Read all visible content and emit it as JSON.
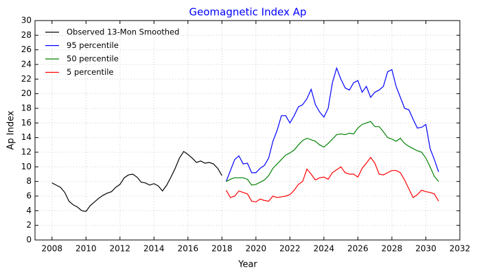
{
  "chart_data": {
    "type": "line",
    "title": "Geomagnetic Index Ap",
    "title_color": "#0000ff",
    "xlabel": "Year",
    "ylabel": "Ap Index",
    "x": [
      2008.0,
      2008.25,
      2008.5,
      2008.75,
      2009.0,
      2009.25,
      2009.5,
      2009.75,
      2010.0,
      2010.25,
      2010.5,
      2010.75,
      2011.0,
      2011.25,
      2011.5,
      2011.75,
      2012.0,
      2012.25,
      2012.5,
      2012.75,
      2013.0,
      2013.25,
      2013.5,
      2013.75,
      2014.0,
      2014.25,
      2014.5,
      2014.75,
      2015.0,
      2015.25,
      2015.5,
      2015.75,
      2016.0,
      2016.25,
      2016.5,
      2016.75,
      2017.0,
      2017.25,
      2017.5,
      2017.75,
      2018.0,
      2018.25,
      2018.5,
      2018.75,
      2019.0,
      2019.25,
      2019.5,
      2019.75,
      2020.0,
      2020.25,
      2020.5,
      2020.75,
      2021.0,
      2021.25,
      2021.5,
      2021.75,
      2022.0,
      2022.25,
      2022.5,
      2022.75,
      2023.0,
      2023.25,
      2023.5,
      2023.75,
      2024.0,
      2024.25,
      2024.5,
      2024.75,
      2025.0,
      2025.25,
      2025.5,
      2025.75,
      2026.0,
      2026.25,
      2026.5,
      2026.75,
      2027.0,
      2027.25,
      2027.5,
      2027.75,
      2028.0,
      2028.25,
      2028.5,
      2028.75,
      2029.0,
      2029.25,
      2029.5,
      2029.75,
      2030.0,
      2030.25,
      2030.5,
      2030.75
    ],
    "series": [
      {
        "name": "Observed 13-Mon Smoothed",
        "color": "#000000",
        "values": [
          7.8,
          7.5,
          7.2,
          6.5,
          5.3,
          4.8,
          4.5,
          4.0,
          3.9,
          4.7,
          5.2,
          5.7,
          6.1,
          6.4,
          6.6,
          7.2,
          7.6,
          8.5,
          8.9,
          9.0,
          8.6,
          7.9,
          7.8,
          7.5,
          7.7,
          7.4,
          6.7,
          7.5,
          8.6,
          9.8,
          11.2,
          12.1,
          11.7,
          11.2,
          10.6,
          10.8,
          10.5,
          10.6,
          10.4,
          9.8,
          8.8,
          null,
          null,
          null,
          null,
          null,
          null,
          null,
          null,
          null,
          null,
          null,
          null,
          null,
          null,
          null,
          null,
          null,
          null,
          null,
          null,
          null,
          null,
          null,
          null,
          null,
          null,
          null,
          null,
          null,
          null,
          null,
          null,
          null,
          null,
          null,
          null,
          null,
          null,
          null,
          null,
          null,
          null,
          null,
          null,
          null,
          null,
          null,
          null,
          null,
          null,
          null
        ]
      },
      {
        "name": "95 percentile",
        "color": "#0000ff",
        "values": [
          null,
          null,
          null,
          null,
          null,
          null,
          null,
          null,
          null,
          null,
          null,
          null,
          null,
          null,
          null,
          null,
          null,
          null,
          null,
          null,
          null,
          null,
          null,
          null,
          null,
          null,
          null,
          null,
          null,
          null,
          null,
          null,
          null,
          null,
          null,
          null,
          null,
          null,
          null,
          null,
          null,
          8.0,
          9.5,
          11.0,
          11.5,
          10.4,
          10.5,
          9.2,
          9.2,
          9.8,
          10.2,
          11.2,
          13.5,
          15.0,
          17.0,
          17.0,
          16.0,
          17.0,
          18.2,
          18.5,
          19.3,
          20.6,
          18.5,
          17.5,
          16.8,
          18.0,
          21.5,
          23.5,
          22.0,
          20.8,
          20.5,
          21.5,
          21.8,
          20.2,
          21.0,
          19.5,
          20.2,
          20.5,
          21.0,
          23.0,
          23.3,
          21.0,
          19.5,
          18.0,
          17.8,
          16.5,
          15.3,
          15.4,
          15.8,
          12.5,
          11.0,
          9.3
        ]
      },
      {
        "name": "50 percentile",
        "color": "#008000",
        "values": [
          null,
          null,
          null,
          null,
          null,
          null,
          null,
          null,
          null,
          null,
          null,
          null,
          null,
          null,
          null,
          null,
          null,
          null,
          null,
          null,
          null,
          null,
          null,
          null,
          null,
          null,
          null,
          null,
          null,
          null,
          null,
          null,
          null,
          null,
          null,
          null,
          null,
          null,
          null,
          null,
          null,
          8.0,
          8.3,
          8.5,
          8.5,
          8.5,
          8.3,
          7.5,
          7.6,
          7.9,
          8.2,
          8.8,
          9.8,
          10.4,
          11.0,
          11.6,
          11.9,
          12.3,
          13.0,
          13.6,
          13.9,
          13.7,
          13.5,
          13.0,
          12.7,
          13.2,
          13.8,
          14.4,
          14.5,
          14.4,
          14.6,
          14.5,
          15.3,
          15.8,
          16.0,
          16.2,
          15.5,
          15.5,
          14.8,
          14.0,
          13.8,
          13.5,
          13.9,
          13.2,
          12.8,
          12.5,
          12.2,
          12.0,
          11.2,
          10.0,
          8.7,
          8.0
        ]
      },
      {
        "name": "5 percentile",
        "color": "#ff0000",
        "values": [
          null,
          null,
          null,
          null,
          null,
          null,
          null,
          null,
          null,
          null,
          null,
          null,
          null,
          null,
          null,
          null,
          null,
          null,
          null,
          null,
          null,
          null,
          null,
          null,
          null,
          null,
          null,
          null,
          null,
          null,
          null,
          null,
          null,
          null,
          null,
          null,
          null,
          null,
          null,
          null,
          null,
          6.8,
          5.8,
          6.0,
          6.7,
          6.5,
          6.3,
          5.3,
          5.2,
          5.6,
          5.4,
          5.3,
          6.0,
          5.8,
          5.9,
          6.0,
          6.2,
          6.8,
          7.6,
          8.0,
          9.7,
          9.0,
          8.2,
          8.5,
          8.6,
          8.3,
          9.2,
          9.6,
          10.0,
          9.2,
          9.0,
          9.0,
          8.6,
          9.8,
          10.5,
          11.3,
          10.5,
          9.0,
          8.9,
          9.2,
          9.5,
          9.5,
          9.2,
          8.2,
          7.0,
          5.8,
          6.2,
          6.8,
          6.6,
          6.5,
          6.3,
          5.3
        ]
      }
    ],
    "xlim": [
      2007,
      2032
    ],
    "xticks": [
      2008,
      2010,
      2012,
      2014,
      2016,
      2018,
      2020,
      2022,
      2024,
      2026,
      2028,
      2030,
      2032
    ],
    "ylim": [
      0,
      30
    ],
    "yticks": [
      0,
      2,
      4,
      6,
      8,
      10,
      12,
      14,
      16,
      18,
      20,
      22,
      24,
      26,
      28,
      30
    ],
    "grid": true,
    "legend": "upper left"
  }
}
